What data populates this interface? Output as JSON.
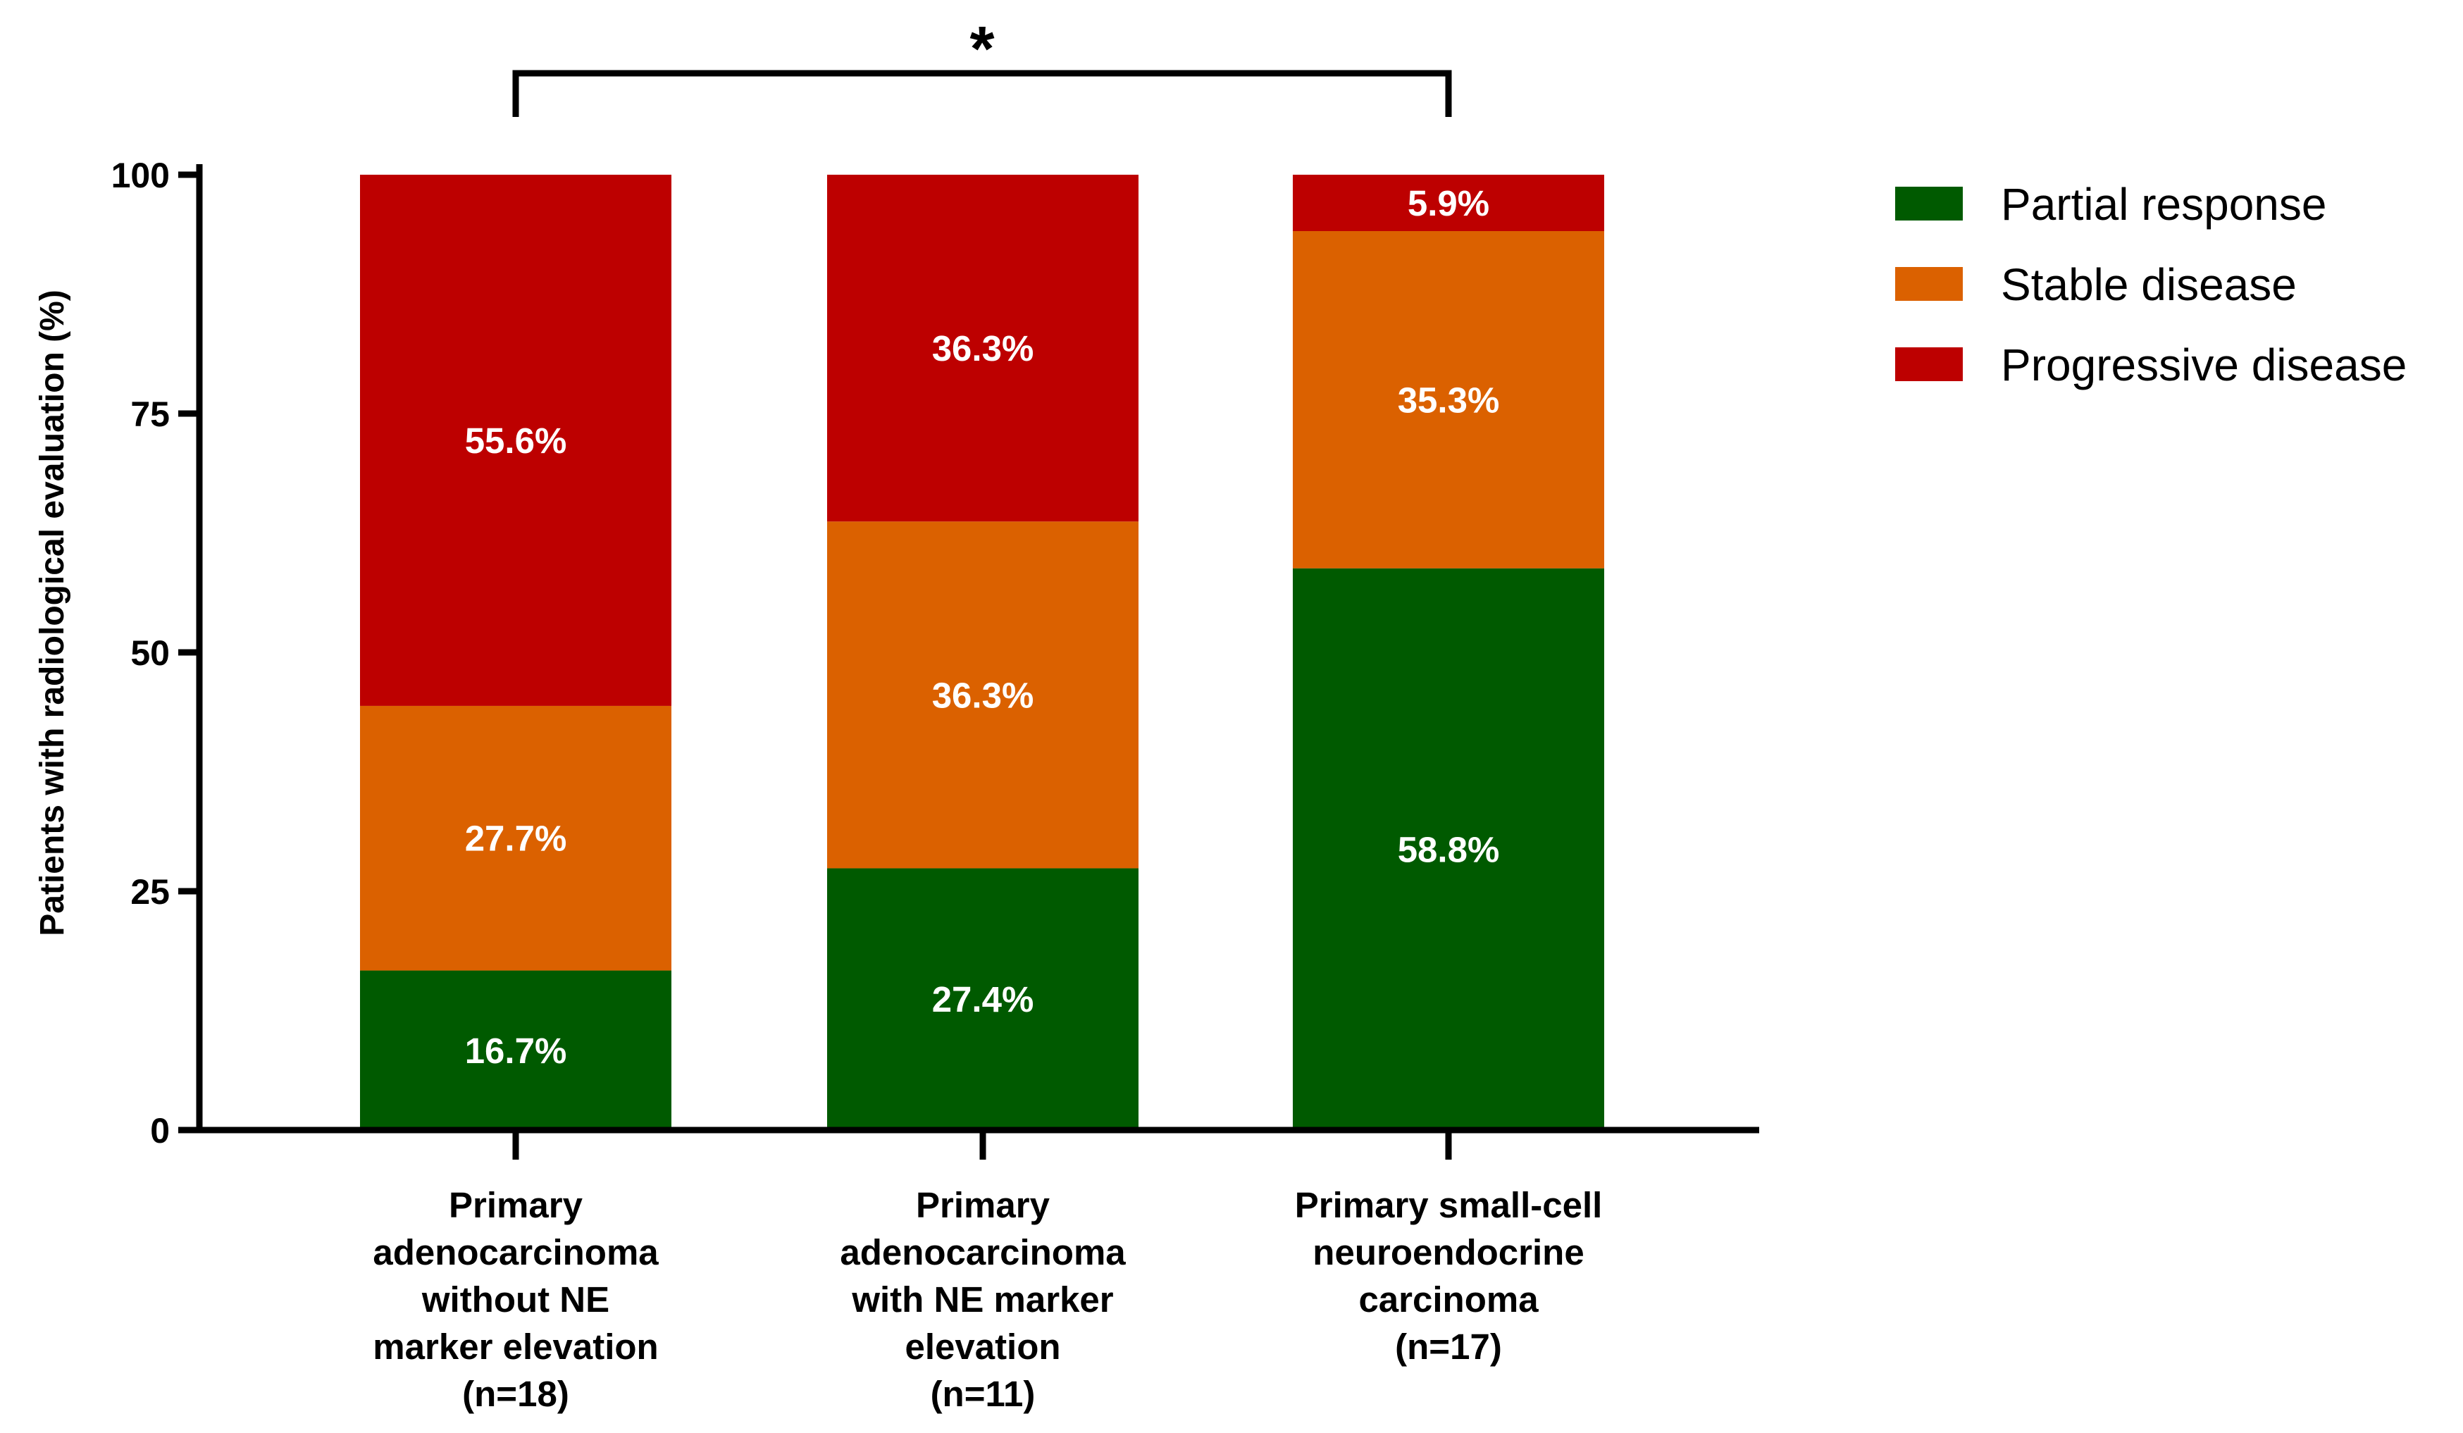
{
  "chart_data": {
    "type": "bar",
    "stacked": true,
    "title": "",
    "xlabel": "",
    "ylabel": "Patients with radiological evaluation (%)",
    "ylim": [
      0,
      100
    ],
    "yticks": [
      0,
      25,
      50,
      75,
      100
    ],
    "ytick_labels": [
      "0",
      "25",
      "50",
      "75",
      "100"
    ],
    "categories": [
      [
        "Primary",
        "adenocarcinoma",
        "without NE",
        "marker elevation",
        "(n=18)"
      ],
      [
        "Primary",
        "adenocarcinoma",
        "with NE marker",
        "elevation",
        "(n=11)"
      ],
      [
        "Primary small-cell",
        "neuroendocrine",
        "carcinoma",
        "(n=17)"
      ]
    ],
    "series": [
      {
        "name": "Partial response",
        "color": "#005a00",
        "values": [
          16.7,
          27.4,
          58.8
        ],
        "labels": [
          "16.7%",
          "27.4%",
          "58.8%"
        ]
      },
      {
        "name": "Stable disease",
        "color": "#db6100",
        "values": [
          27.7,
          36.3,
          35.3
        ],
        "labels": [
          "27.7%",
          "36.3%",
          "35.3%"
        ]
      },
      {
        "name": "Progressive disease",
        "color": "#bd0000",
        "values": [
          55.6,
          36.3,
          5.9
        ],
        "labels": [
          "55.6%",
          "36.3%",
          "5.9%"
        ]
      }
    ],
    "legend_position": "top-right",
    "significance": {
      "from": 0,
      "to": 2,
      "label": "*"
    }
  }
}
